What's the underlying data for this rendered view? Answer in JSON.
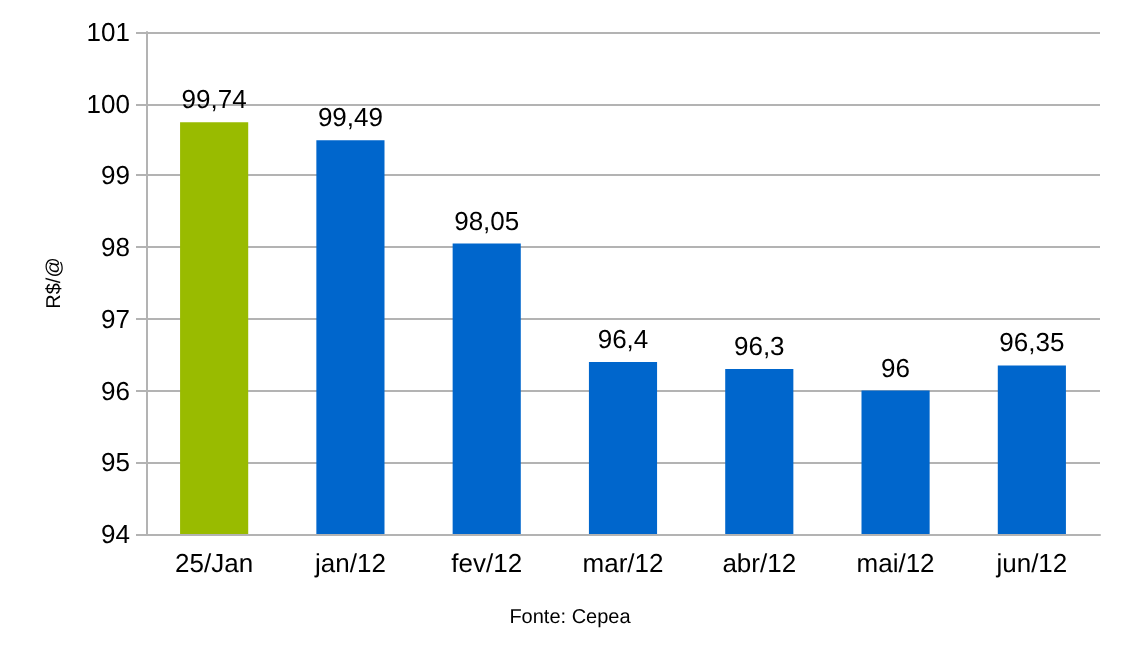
{
  "chart_data": {
    "type": "bar",
    "ylabel": "R$/@",
    "categories": [
      "25/Jan",
      "jan/12",
      "fev/12",
      "mar/12",
      "abr/12",
      "mai/12",
      "jun/12"
    ],
    "values": [
      99.74,
      99.49,
      98.05,
      96.4,
      96.3,
      96,
      96.35
    ],
    "value_labels": [
      "99,74",
      "99,49",
      "98,05",
      "96,4",
      "96,3",
      "96",
      "96,35"
    ],
    "colors": [
      "#99bb00",
      "#0066cc",
      "#0066cc",
      "#0066cc",
      "#0066cc",
      "#0066cc",
      "#0066cc"
    ],
    "ylim": [
      94,
      101
    ],
    "yticks": [
      94,
      95,
      96,
      97,
      98,
      99,
      100,
      101
    ],
    "grid": "y",
    "annotations": [
      "Fonte: Cepea"
    ]
  }
}
